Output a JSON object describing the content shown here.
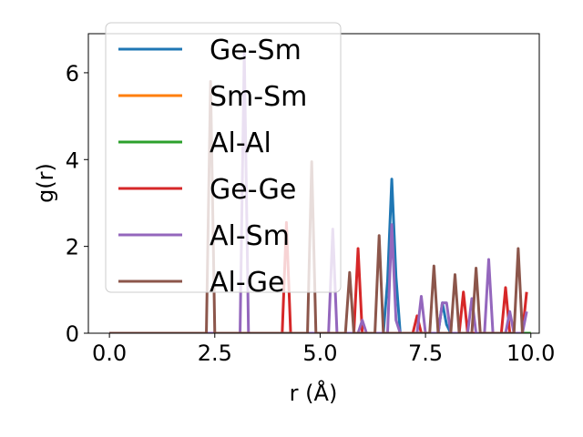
{
  "chart_data": {
    "type": "line",
    "xlabel": "r (Å)",
    "ylabel": "g(r)",
    "xlim": [
      -0.5,
      10.2
    ],
    "ylim": [
      0,
      6.9
    ],
    "xticks": [
      0.0,
      2.5,
      5.0,
      7.5,
      10.0
    ],
    "xtick_labels": [
      "0.0",
      "2.5",
      "5.0",
      "7.5",
      "10.0"
    ],
    "yticks": [
      0,
      2,
      4,
      6
    ],
    "ytick_labels": [
      "0",
      "2",
      "4",
      "6"
    ],
    "grid": false,
    "legend_position": "top-left",
    "series": [
      {
        "name": "Ge-Sm",
        "color": "#1f77b4",
        "points": [
          [
            0,
            0
          ],
          [
            6.5,
            0
          ],
          [
            6.6,
            1.2
          ],
          [
            6.7,
            3.55
          ],
          [
            6.8,
            1.3
          ],
          [
            6.9,
            0
          ],
          [
            7.8,
            0
          ],
          [
            7.9,
            0.7
          ],
          [
            8.0,
            0.2
          ],
          [
            8.1,
            0
          ]
        ]
      },
      {
        "name": "Sm-Sm",
        "color": "#ff7f0e",
        "points": [
          [
            0,
            0
          ],
          [
            10,
            0
          ]
        ]
      },
      {
        "name": "Al-Al",
        "color": "#2ca02c",
        "points": [
          [
            0,
            0
          ],
          [
            10,
            0
          ]
        ]
      },
      {
        "name": "Ge-Ge",
        "color": "#d62728",
        "points": [
          [
            0,
            0
          ],
          [
            4.1,
            0
          ],
          [
            4.2,
            2.55
          ],
          [
            4.3,
            0
          ],
          [
            5.8,
            0
          ],
          [
            5.9,
            1.95
          ],
          [
            6.0,
            0
          ],
          [
            7.2,
            0
          ],
          [
            7.3,
            0.4
          ],
          [
            7.4,
            0
          ],
          [
            8.3,
            0
          ],
          [
            8.4,
            0.95
          ],
          [
            8.5,
            0
          ],
          [
            9.3,
            0
          ],
          [
            9.4,
            1.05
          ],
          [
            9.5,
            0
          ],
          [
            9.8,
            0
          ],
          [
            9.9,
            0.95
          ]
        ]
      },
      {
        "name": "Al-Sm",
        "color": "#9467bd",
        "points": [
          [
            0,
            0
          ],
          [
            3.1,
            0
          ],
          [
            3.2,
            6.5
          ],
          [
            3.3,
            0
          ],
          [
            5.2,
            0
          ],
          [
            5.3,
            2.4
          ],
          [
            5.4,
            0
          ],
          [
            5.9,
            0
          ],
          [
            6.0,
            0.3
          ],
          [
            6.1,
            0
          ],
          [
            6.6,
            0
          ],
          [
            6.7,
            2.5
          ],
          [
            6.8,
            0.3
          ],
          [
            6.9,
            0
          ],
          [
            7.3,
            0
          ],
          [
            7.4,
            0.85
          ],
          [
            7.5,
            0
          ],
          [
            7.8,
            0
          ],
          [
            7.9,
            0.7
          ],
          [
            8.0,
            0.7
          ],
          [
            8.1,
            0
          ],
          [
            8.5,
            0
          ],
          [
            8.6,
            0.8
          ],
          [
            8.7,
            0
          ],
          [
            8.9,
            0
          ],
          [
            9.0,
            1.7
          ],
          [
            9.1,
            0
          ],
          [
            9.4,
            0
          ],
          [
            9.5,
            0.5
          ],
          [
            9.6,
            0
          ],
          [
            9.8,
            0
          ],
          [
            9.9,
            0.5
          ]
        ]
      },
      {
        "name": "Al-Ge",
        "color": "#8c564b",
        "points": [
          [
            0,
            0
          ],
          [
            2.3,
            0
          ],
          [
            2.4,
            5.8
          ],
          [
            2.5,
            0
          ],
          [
            4.7,
            0
          ],
          [
            4.8,
            3.95
          ],
          [
            4.9,
            0
          ],
          [
            5.6,
            0
          ],
          [
            5.7,
            1.4
          ],
          [
            5.8,
            0
          ],
          [
            6.3,
            0
          ],
          [
            6.4,
            2.25
          ],
          [
            6.5,
            0
          ],
          [
            7.6,
            0
          ],
          [
            7.7,
            1.55
          ],
          [
            7.8,
            0
          ],
          [
            8.1,
            0
          ],
          [
            8.2,
            1.35
          ],
          [
            8.3,
            0
          ],
          [
            8.6,
            0
          ],
          [
            8.7,
            1.5
          ],
          [
            8.8,
            0
          ],
          [
            9.6,
            0
          ],
          [
            9.7,
            1.95
          ],
          [
            9.8,
            0
          ]
        ]
      }
    ]
  }
}
